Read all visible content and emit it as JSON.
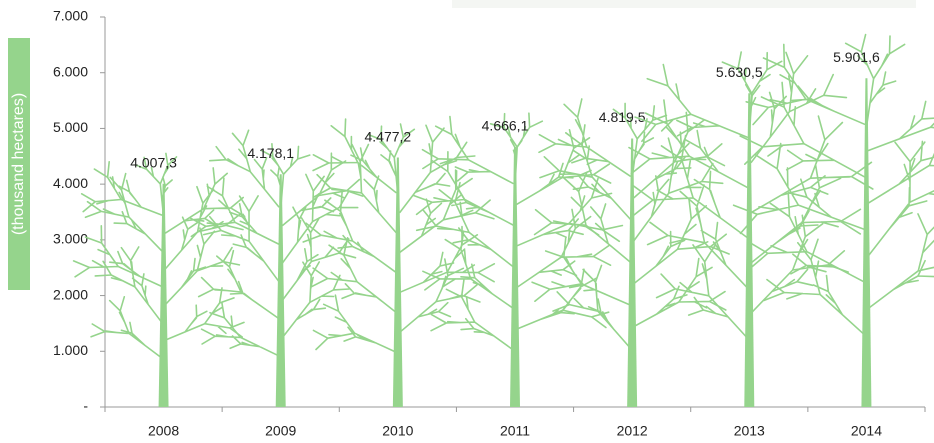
{
  "chart_data": {
    "type": "pictorial-bar",
    "y_label": "(thousand hectares)",
    "categories": [
      "2008",
      "2009",
      "2010",
      "2011",
      "2012",
      "2013",
      "2014"
    ],
    "values": [
      4007.3,
      4178.1,
      4477.2,
      4666.1,
      4819.5,
      5630.5,
      5901.6
    ],
    "value_labels": [
      "4.007,3",
      "4.178,1",
      "4.477,2",
      "4.666,1",
      "4.819,5",
      "5.630,5",
      "5.901,6"
    ],
    "color": "#95d48c",
    "ylim": [
      0,
      7000
    ],
    "yticks": [
      {
        "value": 0,
        "label": "-"
      },
      {
        "value": 1000,
        "label": "1.000"
      },
      {
        "value": 2000,
        "label": "2.000"
      },
      {
        "value": 3000,
        "label": "3.000"
      },
      {
        "value": 4000,
        "label": "4.000"
      },
      {
        "value": 5000,
        "label": "5.000"
      },
      {
        "value": 6000,
        "label": "6.000"
      },
      {
        "value": 7000,
        "label": "7.000"
      }
    ]
  }
}
